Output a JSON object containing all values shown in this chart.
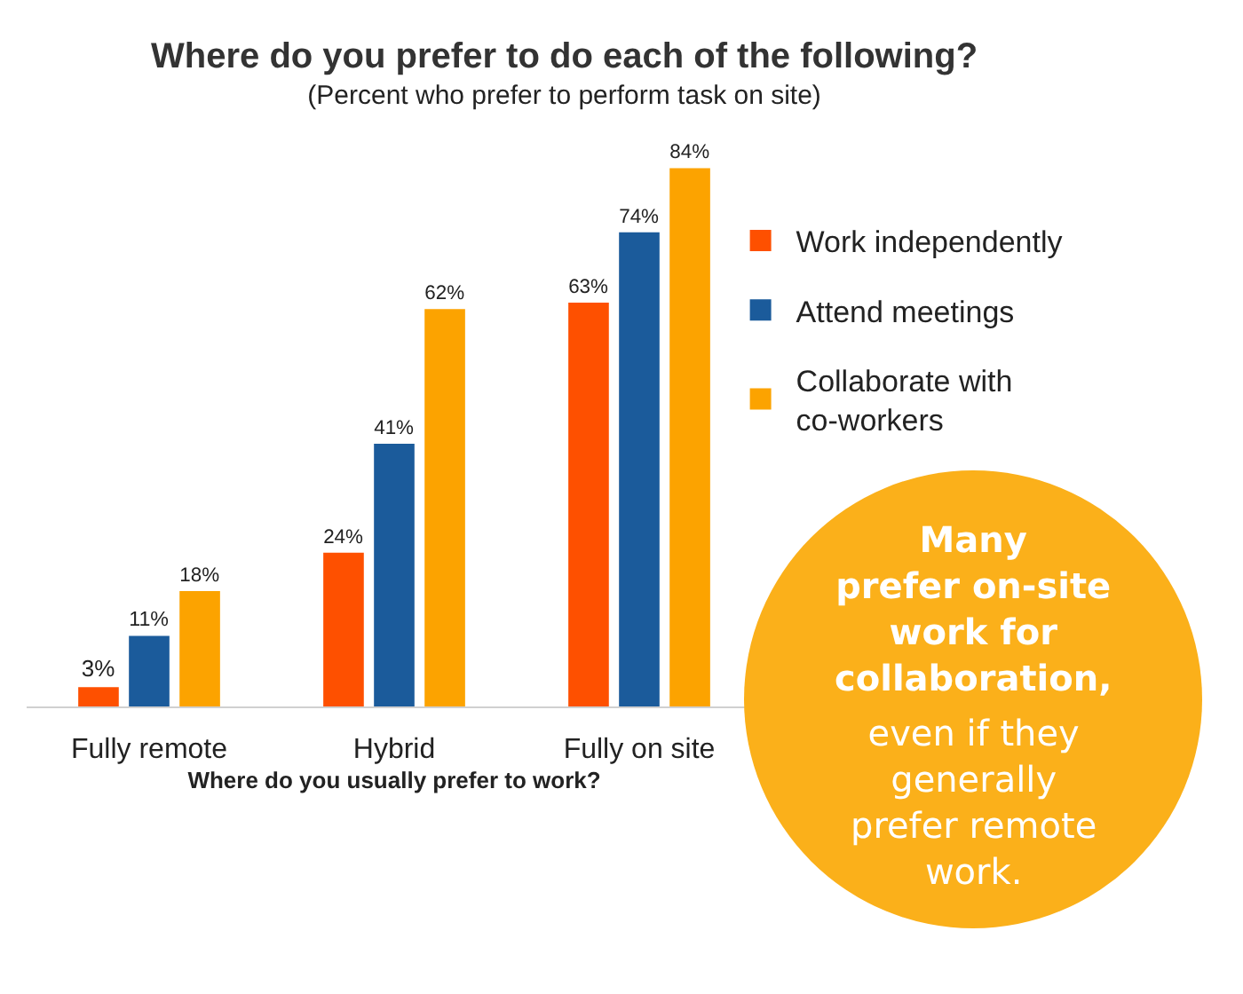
{
  "chart_data": {
    "type": "bar",
    "title": "Where do you prefer to do each of the following?",
    "subtitle": "(Percent who prefer to perform task on site)",
    "xlabel": "Where do you usually prefer to work?",
    "categories": [
      "Fully remote",
      "Hybrid",
      "Fully on site"
    ],
    "series": [
      {
        "name": "Work independently",
        "color": "#fe5000",
        "values": [
          3,
          24,
          63
        ],
        "value_labels": [
          "3%",
          "24%",
          "63%"
        ]
      },
      {
        "name": "Attend meetings",
        "color": "#1b5b9b",
        "values": [
          11,
          41,
          74
        ],
        "value_labels": [
          "11%",
          "41%",
          "74%"
        ]
      },
      {
        "name": "Collaborate with co-workers",
        "color": "#fca300",
        "values": [
          18,
          62,
          84
        ],
        "value_labels": [
          "18%",
          "62%",
          "84%"
        ]
      }
    ],
    "legend": "right",
    "annotations": [
      "Many prefer on-site work for collaboration,",
      "even if they generally prefer remote work."
    ]
  }
}
